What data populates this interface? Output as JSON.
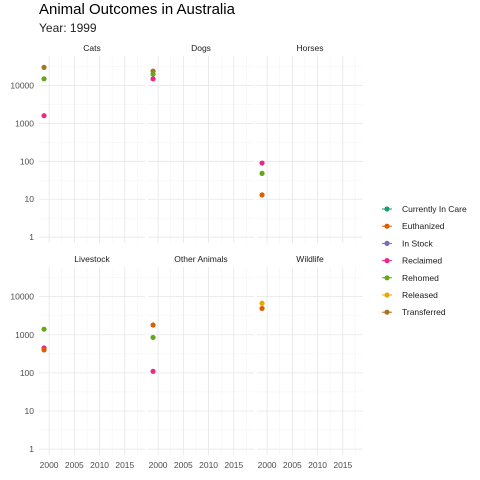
{
  "chart_data": {
    "type": "scatter",
    "title": "Animal Outcomes in Australia",
    "subtitle": "Year: 1999",
    "xlabel": "",
    "ylabel": "",
    "y_scale": "log",
    "xlim": [
      1998,
      2019
    ],
    "ylim": [
      0.7,
      60000
    ],
    "x_ticks": [
      2000,
      2005,
      2010,
      2015
    ],
    "y_ticks": [
      1,
      10,
      100,
      1000,
      10000
    ],
    "y_tick_labels": [
      "1",
      "10",
      "100",
      "1000",
      "10000"
    ],
    "grid": true,
    "legend_position": "right",
    "series_order": [
      "Currently In Care",
      "Euthanized",
      "In Stock",
      "Reclaimed",
      "Rehomed",
      "Released",
      "Transferred"
    ],
    "colors": {
      "Currently In Care": "#1B9E77",
      "Euthanized": "#D95F02",
      "In Stock": "#7570B3",
      "Reclaimed": "#E7298A",
      "Rehomed": "#66A61E",
      "Released": "#E6AB02",
      "Transferred": "#A6761D"
    },
    "facets": [
      {
        "name": "Cats",
        "points": [
          {
            "series": "Transferred",
            "x": 1999,
            "y": 30000
          },
          {
            "series": "Rehomed",
            "x": 1999,
            "y": 15000
          },
          {
            "series": "Reclaimed",
            "x": 1999,
            "y": 1600
          }
        ]
      },
      {
        "name": "Dogs",
        "points": [
          {
            "series": "Transferred",
            "x": 1999,
            "y": 24000
          },
          {
            "series": "Rehomed",
            "x": 1999,
            "y": 20000
          },
          {
            "series": "Reclaimed",
            "x": 1999,
            "y": 15000
          }
        ]
      },
      {
        "name": "Horses",
        "points": [
          {
            "series": "Reclaimed",
            "x": 1999,
            "y": 90
          },
          {
            "series": "Rehomed",
            "x": 1999,
            "y": 48
          },
          {
            "series": "Euthanized",
            "x": 1999,
            "y": 13
          }
        ]
      },
      {
        "name": "Livestock",
        "points": [
          {
            "series": "Rehomed",
            "x": 1999,
            "y": 1400
          },
          {
            "series": "Reclaimed",
            "x": 1999,
            "y": 450
          },
          {
            "series": "Euthanized",
            "x": 1999,
            "y": 400
          }
        ]
      },
      {
        "name": "Other Animals",
        "points": [
          {
            "series": "Euthanized",
            "x": 1999,
            "y": 1800
          },
          {
            "series": "Rehomed",
            "x": 1999,
            "y": 850
          },
          {
            "series": "Reclaimed",
            "x": 1999,
            "y": 110
          }
        ]
      },
      {
        "name": "Wildlife",
        "points": [
          {
            "series": "Released",
            "x": 1999,
            "y": 6700
          },
          {
            "series": "Euthanized",
            "x": 1999,
            "y": 4900
          }
        ]
      }
    ]
  }
}
